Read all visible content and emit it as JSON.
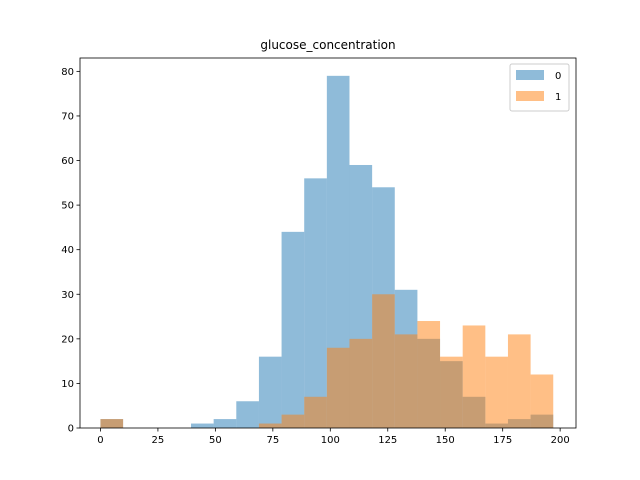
{
  "chart_data": {
    "type": "bar",
    "title": "glucose_concentration",
    "xlabel": "",
    "ylabel": "",
    "xlim": [
      -8.9,
      206.9
    ],
    "ylim": [
      0,
      83
    ],
    "xticks": [
      0,
      25,
      50,
      75,
      100,
      125,
      150,
      175,
      200
    ],
    "yticks": [
      0,
      10,
      20,
      30,
      40,
      50,
      60,
      70,
      80
    ],
    "grid": false,
    "legend_position": "top-right",
    "series": [
      {
        "name": "0",
        "color": "#1f77b4",
        "opacity": 0.5,
        "bin_edges": [
          0,
          9.85,
          19.7,
          29.55,
          39.4,
          49.25,
          59.1,
          68.95,
          78.8,
          88.65,
          98.5,
          108.35,
          118.2,
          128.05,
          137.9,
          147.75,
          157.6,
          167.45,
          177.3,
          187.15,
          197
        ],
        "values": [
          2,
          0,
          0,
          0,
          1,
          2,
          6,
          16,
          44,
          56,
          79,
          59,
          54,
          31,
          20,
          15,
          7,
          1,
          2,
          3
        ]
      },
      {
        "name": "1",
        "color": "#ff7f0e",
        "opacity": 0.5,
        "bin_edges": [
          0,
          9.85,
          19.7,
          29.55,
          39.4,
          49.25,
          59.1,
          68.95,
          78.8,
          88.65,
          98.5,
          108.35,
          118.2,
          128.05,
          137.9,
          147.75,
          157.6,
          167.45,
          177.3,
          187.15,
          197
        ],
        "values": [
          2,
          0,
          0,
          0,
          0,
          0,
          0,
          1,
          3,
          7,
          18,
          20,
          30,
          21,
          24,
          16,
          23,
          16,
          21,
          12
        ]
      }
    ]
  }
}
